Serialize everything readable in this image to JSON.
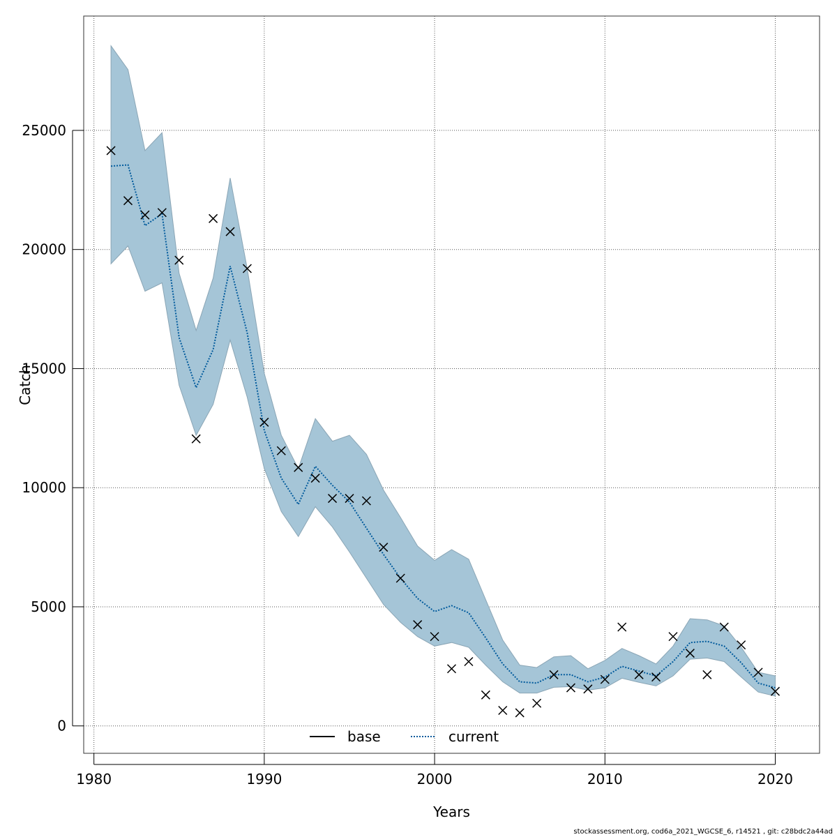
{
  "chart_data": {
    "type": "line",
    "xlabel": "Years",
    "ylabel": "Catch",
    "xlim": [
      1979.4,
      2022.6
    ],
    "ylim": [
      -1150,
      29800
    ],
    "xticks": [
      1980,
      1990,
      2000,
      2010,
      2020
    ],
    "yticks": [
      0,
      5000,
      10000,
      15000,
      20000,
      25000
    ],
    "grid": true,
    "legend_position": "bottom-center",
    "years": [
      1981,
      1982,
      1983,
      1984,
      1985,
      1986,
      1987,
      1988,
      1989,
      1990,
      1991,
      1992,
      1993,
      1994,
      1995,
      1996,
      1997,
      1998,
      1999,
      2000,
      2001,
      2002,
      2003,
      2004,
      2005,
      2006,
      2007,
      2008,
      2009,
      2010,
      2011,
      2012,
      2013,
      2014,
      2015,
      2016,
      2017,
      2018,
      2019,
      2020
    ],
    "series": [
      {
        "name": "base",
        "style": "solid",
        "color": "#000000",
        "values": [
          23500,
          23550,
          21000,
          21500,
          16300,
          14200,
          15800,
          19300,
          16500,
          12400,
          10400,
          9300,
          10900,
          10100,
          9400,
          8300,
          7200,
          6200,
          5350,
          4800,
          5050,
          4750,
          3700,
          2600,
          1850,
          1800,
          2150,
          2150,
          1850,
          2050,
          2500,
          2300,
          2100,
          2700,
          3500,
          3550,
          3350,
          2650,
          1800,
          1600
        ]
      },
      {
        "name": "current",
        "style": "dotted",
        "color": "#005a9c",
        "values": [
          23500,
          23550,
          21000,
          21500,
          16300,
          14200,
          15800,
          19300,
          16500,
          12400,
          10400,
          9300,
          10900,
          10100,
          9400,
          8300,
          7200,
          6200,
          5350,
          4800,
          5050,
          4750,
          3700,
          2600,
          1850,
          1800,
          2150,
          2150,
          1850,
          2050,
          2500,
          2300,
          2100,
          2700,
          3500,
          3550,
          3350,
          2650,
          1800,
          1600
        ]
      }
    ],
    "band": {
      "color": "#a5c5d7",
      "upper": [
        28550,
        27550,
        24150,
        24900,
        19000,
        16600,
        18800,
        23000,
        19200,
        14800,
        12200,
        10800,
        12900,
        11950,
        12200,
        11400,
        9900,
        8750,
        7550,
        6950,
        7400,
        7000,
        5300,
        3600,
        2550,
        2450,
        2900,
        2950,
        2400,
        2750,
        3250,
        2950,
        2600,
        3350,
        4500,
        4450,
        4200,
        3300,
        2250,
        2100
      ],
      "lower": [
        19400,
        20150,
        18250,
        18600,
        14300,
        12200,
        13500,
        16200,
        13800,
        10800,
        9000,
        7950,
        9200,
        8350,
        7300,
        6200,
        5100,
        4350,
        3750,
        3350,
        3500,
        3300,
        2550,
        1850,
        1380,
        1380,
        1620,
        1650,
        1500,
        1600,
        2000,
        1830,
        1680,
        2100,
        2800,
        2850,
        2700,
        2050,
        1420,
        1250
      ]
    },
    "observations": {
      "marker": "x",
      "values": [
        24150,
        22050,
        21450,
        21550,
        19550,
        12050,
        21300,
        20750,
        19200,
        12750,
        11550,
        10850,
        10400,
        9550,
        9550,
        9450,
        7500,
        6200,
        4250,
        3750,
        2400,
        2700,
        1300,
        650,
        550,
        950,
        2150,
        1600,
        1550,
        1950,
        4150,
        2150,
        2050,
        3750,
        3050,
        2150,
        4150,
        3400,
        2250,
        1450
      ]
    }
  },
  "legend": {
    "base_label": "base",
    "current_label": "current"
  },
  "footer": {
    "text": "stockassessment.org, cod6a_2021_WGCSE_6, r14521 , git: c28bdc2a44ad"
  }
}
